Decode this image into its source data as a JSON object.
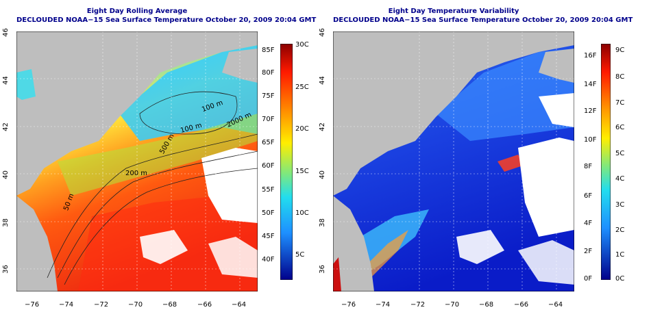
{
  "left_panel": {
    "title_line1": "Eight Day Rolling Average",
    "title_line2": "DECLOUDED NOAA−15 Sea Surface Temperature October 20, 2009 20:04 GMT",
    "x_ticks": [
      "−76",
      "−74",
      "−72",
      "−70",
      "−68",
      "−66",
      "−64"
    ],
    "y_ticks": [
      "36",
      "38",
      "40",
      "42",
      "44",
      "46"
    ],
    "contour_labels": [
      "100 m",
      "100 m",
      "500 m",
      "2000 m",
      "200 m",
      "50 m"
    ],
    "colorbar_f_ticks": [
      "85F",
      "80F",
      "75F",
      "70F",
      "65F",
      "60F",
      "55F",
      "50F",
      "45F",
      "40F"
    ],
    "colorbar_c_ticks": [
      "30C",
      "25C",
      "20C",
      "15C",
      "10C",
      "5C"
    ],
    "colors": {
      "land": "#bebebe",
      "cold": "#00bfff",
      "warm": "#ff3c00"
    }
  },
  "right_panel": {
    "title_line1": "Eight Day Temperature Variability",
    "title_line2": "DECLOUDED NOAA−15 Sea Surface Temperature October 20, 2009 20:04 GMT",
    "x_ticks": [
      "−76",
      "−74",
      "−72",
      "−70",
      "−68",
      "−66",
      "−64"
    ],
    "y_ticks": [
      "36",
      "38",
      "40",
      "42",
      "44",
      "46"
    ],
    "colorbar_f_ticks": [
      "16F",
      "14F",
      "12F",
      "10F",
      "8F",
      "6F",
      "4F",
      "2F",
      "0F"
    ],
    "colorbar_c_ticks": [
      "9C",
      "8C",
      "7C",
      "6C",
      "5C",
      "4C",
      "3C",
      "2C",
      "1C",
      "0C"
    ],
    "colors": {
      "land": "#bebebe",
      "low": "#0000cd",
      "high": "#ff0000"
    }
  }
}
